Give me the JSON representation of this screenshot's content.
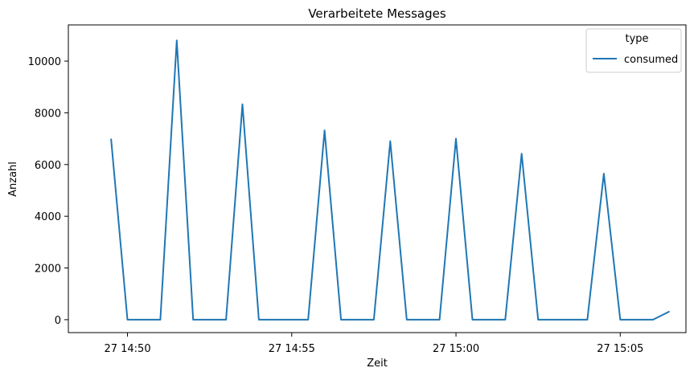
{
  "chart_data": {
    "type": "line",
    "title": "Verarbeitete Messages",
    "xlabel": "Zeit",
    "ylabel": "Anzahl",
    "x_tick_labels": [
      "27 14:50",
      "27 14:55",
      "27 15:00",
      "27 15:05"
    ],
    "x_tick_minutes": [
      50,
      55,
      60,
      65
    ],
    "y_ticks": [
      0,
      2000,
      4000,
      6000,
      8000,
      10000
    ],
    "ylim": [
      -500,
      11400
    ],
    "xlim_minutes": [
      48.2,
      67.0
    ],
    "legend": {
      "title": "type",
      "placement": "top-right"
    },
    "series": [
      {
        "name": "consumed",
        "color": "#1f77b4",
        "points": [
          {
            "t": "14:49:30",
            "y": 7000
          },
          {
            "t": "14:50:00",
            "y": 0
          },
          {
            "t": "14:51:00",
            "y": 0
          },
          {
            "t": "14:51:30",
            "y": 10800
          },
          {
            "t": "14:52:00",
            "y": 0
          },
          {
            "t": "14:53:00",
            "y": 0
          },
          {
            "t": "14:53:30",
            "y": 8330
          },
          {
            "t": "14:54:00",
            "y": 0
          },
          {
            "t": "14:55:00",
            "y": 0
          },
          {
            "t": "14:55:30",
            "y": 0
          },
          {
            "t": "14:56:00",
            "y": 7320
          },
          {
            "t": "14:56:30",
            "y": 0
          },
          {
            "t": "14:57:30",
            "y": 0
          },
          {
            "t": "14:58:00",
            "y": 6900
          },
          {
            "t": "14:58:30",
            "y": 0
          },
          {
            "t": "14:59:30",
            "y": 0
          },
          {
            "t": "15:00:00",
            "y": 7000
          },
          {
            "t": "15:00:30",
            "y": 0
          },
          {
            "t": "15:01:30",
            "y": 0
          },
          {
            "t": "15:02:00",
            "y": 6420
          },
          {
            "t": "15:02:30",
            "y": 0
          },
          {
            "t": "15:04:00",
            "y": 0
          },
          {
            "t": "15:04:30",
            "y": 5650
          },
          {
            "t": "15:05:00",
            "y": 0
          },
          {
            "t": "15:06:00",
            "y": 0
          },
          {
            "t": "15:06:30",
            "y": 320
          }
        ]
      }
    ]
  }
}
